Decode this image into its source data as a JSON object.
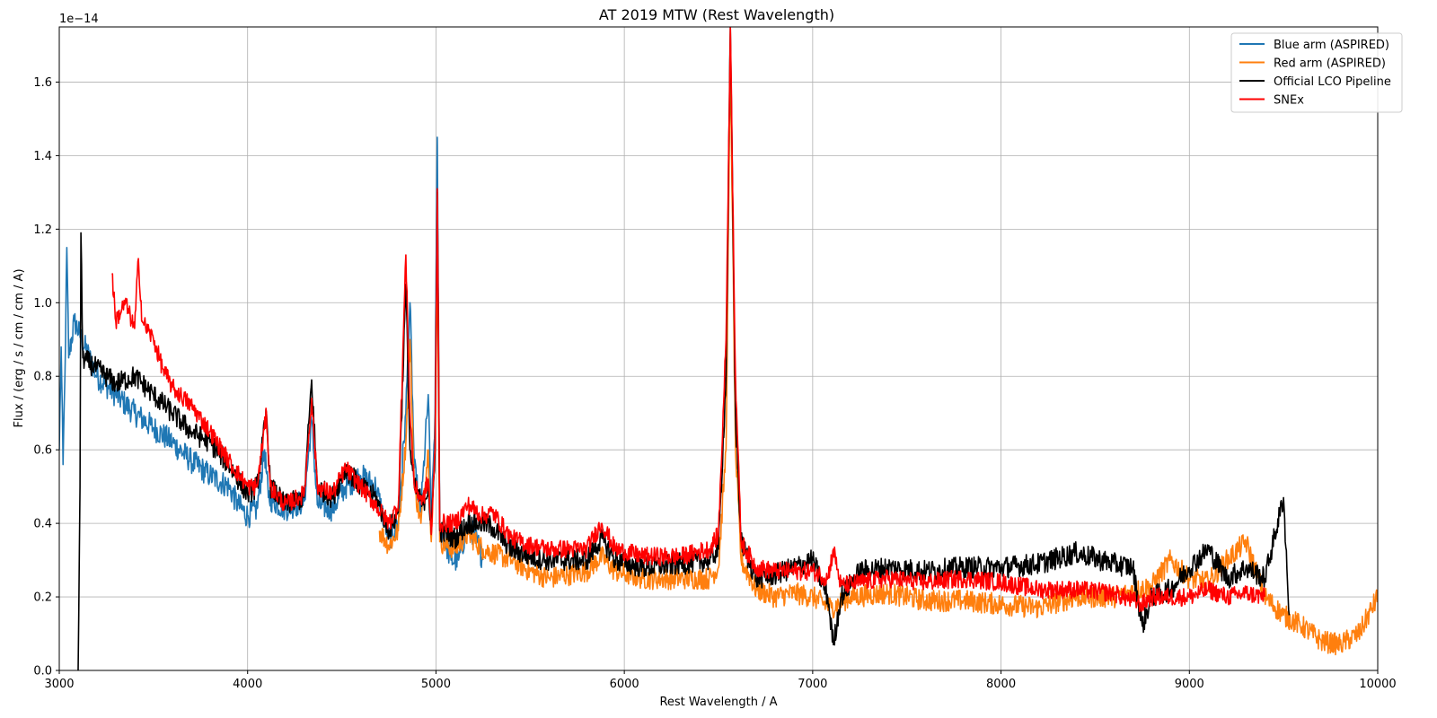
{
  "chart_data": {
    "type": "line",
    "title": "AT 2019 MTW (Rest Wavelength)",
    "xlabel": "Rest Wavelength / A",
    "ylabel": "Flux / (erg / s / cm / cm / A)",
    "y_offset_label": "1e−14",
    "xlim": [
      3000,
      10000
    ],
    "ylim": [
      0.0,
      1.75
    ],
    "xticks": [
      3000,
      4000,
      5000,
      6000,
      7000,
      8000,
      9000,
      10000
    ],
    "yticks": [
      0.0,
      0.2,
      0.4,
      0.6,
      0.8,
      1.0,
      1.2,
      1.4,
      1.6
    ],
    "grid": true,
    "legend_position": "top-right",
    "series": [
      {
        "name": "Blue arm (ASPIRED)",
        "color": "#1f77b4",
        "noise": 0.035,
        "points": [
          [
            3000,
            0.6
          ],
          [
            3010,
            0.88
          ],
          [
            3020,
            0.56
          ],
          [
            3030,
            0.8
          ],
          [
            3040,
            1.15
          ],
          [
            3050,
            0.85
          ],
          [
            3080,
            0.95
          ],
          [
            3120,
            0.9
          ],
          [
            3200,
            0.8
          ],
          [
            3300,
            0.75
          ],
          [
            3400,
            0.7
          ],
          [
            3500,
            0.66
          ],
          [
            3600,
            0.62
          ],
          [
            3700,
            0.57
          ],
          [
            3800,
            0.53
          ],
          [
            3900,
            0.5
          ],
          [
            3950,
            0.45
          ],
          [
            4000,
            0.42
          ],
          [
            4050,
            0.44
          ],
          [
            4090,
            0.6
          ],
          [
            4110,
            0.47
          ],
          [
            4200,
            0.44
          ],
          [
            4300,
            0.46
          ],
          [
            4340,
            0.68
          ],
          [
            4370,
            0.45
          ],
          [
            4450,
            0.44
          ],
          [
            4520,
            0.5
          ],
          [
            4600,
            0.53
          ],
          [
            4680,
            0.5
          ],
          [
            4750,
            0.36
          ],
          [
            4800,
            0.4
          ],
          [
            4840,
            0.7
          ],
          [
            4862,
            1.0
          ],
          [
            4885,
            0.55
          ],
          [
            4920,
            0.43
          ],
          [
            4959,
            0.75
          ],
          [
            4975,
            0.4
          ],
          [
            4995,
            0.7
          ],
          [
            5007,
            1.45
          ],
          [
            5020,
            0.4
          ],
          [
            5080,
            0.3
          ],
          [
            5120,
            0.3
          ],
          [
            5170,
            0.4
          ],
          [
            5220,
            0.35
          ],
          [
            5250,
            0.3
          ]
        ]
      },
      {
        "name": "Red arm (ASPIRED)",
        "color": "#ff7f0e",
        "noise": 0.03,
        "points": [
          [
            4700,
            0.38
          ],
          [
            4750,
            0.34
          ],
          [
            4800,
            0.38
          ],
          [
            4840,
            0.62
          ],
          [
            4862,
            0.9
          ],
          [
            4885,
            0.5
          ],
          [
            4920,
            0.4
          ],
          [
            4959,
            0.6
          ],
          [
            4975,
            0.35
          ],
          [
            4995,
            0.6
          ],
          [
            5007,
            1.15
          ],
          [
            5020,
            0.35
          ],
          [
            5100,
            0.33
          ],
          [
            5170,
            0.37
          ],
          [
            5250,
            0.33
          ],
          [
            5400,
            0.3
          ],
          [
            5500,
            0.27
          ],
          [
            5600,
            0.25
          ],
          [
            5700,
            0.26
          ],
          [
            5800,
            0.27
          ],
          [
            5880,
            0.31
          ],
          [
            5950,
            0.27
          ],
          [
            6100,
            0.25
          ],
          [
            6300,
            0.25
          ],
          [
            6450,
            0.25
          ],
          [
            6500,
            0.28
          ],
          [
            6540,
            0.6
          ],
          [
            6563,
            1.67
          ],
          [
            6590,
            0.6
          ],
          [
            6620,
            0.3
          ],
          [
            6700,
            0.22
          ],
          [
            6800,
            0.2
          ],
          [
            6900,
            0.21
          ],
          [
            7000,
            0.2
          ],
          [
            7100,
            0.17
          ],
          [
            7200,
            0.2
          ],
          [
            7400,
            0.21
          ],
          [
            7600,
            0.19
          ],
          [
            7800,
            0.19
          ],
          [
            8000,
            0.18
          ],
          [
            8200,
            0.17
          ],
          [
            8400,
            0.2
          ],
          [
            8600,
            0.2
          ],
          [
            8800,
            0.23
          ],
          [
            8900,
            0.3
          ],
          [
            9000,
            0.25
          ],
          [
            9100,
            0.24
          ],
          [
            9200,
            0.3
          ],
          [
            9300,
            0.35
          ],
          [
            9400,
            0.2
          ],
          [
            9500,
            0.15
          ],
          [
            9600,
            0.12
          ],
          [
            9700,
            0.08
          ],
          [
            9800,
            0.07
          ],
          [
            9900,
            0.1
          ],
          [
            10000,
            0.2
          ]
        ]
      },
      {
        "name": "Official LCO Pipeline",
        "color": "#000000",
        "noise": 0.03,
        "points": [
          [
            3100,
            0.0
          ],
          [
            3110,
            0.5
          ],
          [
            3115,
            1.19
          ],
          [
            3125,
            0.85
          ],
          [
            3200,
            0.82
          ],
          [
            3300,
            0.78
          ],
          [
            3400,
            0.8
          ],
          [
            3500,
            0.75
          ],
          [
            3600,
            0.7
          ],
          [
            3700,
            0.65
          ],
          [
            3800,
            0.62
          ],
          [
            3900,
            0.56
          ],
          [
            4000,
            0.48
          ],
          [
            4050,
            0.5
          ],
          [
            4100,
            0.7
          ],
          [
            4120,
            0.5
          ],
          [
            4200,
            0.45
          ],
          [
            4300,
            0.47
          ],
          [
            4340,
            0.79
          ],
          [
            4370,
            0.5
          ],
          [
            4450,
            0.47
          ],
          [
            4520,
            0.55
          ],
          [
            4600,
            0.5
          ],
          [
            4680,
            0.47
          ],
          [
            4750,
            0.38
          ],
          [
            4800,
            0.43
          ],
          [
            4840,
            1.05
          ],
          [
            4862,
            0.6
          ],
          [
            4885,
            0.5
          ],
          [
            4930,
            0.45
          ],
          [
            4959,
            0.5
          ],
          [
            4975,
            0.37
          ],
          [
            4995,
            0.6
          ],
          [
            5007,
            1.3
          ],
          [
            5020,
            0.38
          ],
          [
            5100,
            0.36
          ],
          [
            5170,
            0.4
          ],
          [
            5250,
            0.4
          ],
          [
            5300,
            0.39
          ],
          [
            5400,
            0.33
          ],
          [
            5500,
            0.31
          ],
          [
            5600,
            0.3
          ],
          [
            5700,
            0.3
          ],
          [
            5800,
            0.3
          ],
          [
            5880,
            0.36
          ],
          [
            5950,
            0.3
          ],
          [
            6100,
            0.28
          ],
          [
            6300,
            0.29
          ],
          [
            6450,
            0.3
          ],
          [
            6500,
            0.33
          ],
          [
            6540,
            0.8
          ],
          [
            6563,
            1.75
          ],
          [
            6590,
            0.7
          ],
          [
            6620,
            0.35
          ],
          [
            6700,
            0.25
          ],
          [
            6800,
            0.26
          ],
          [
            6900,
            0.28
          ],
          [
            7000,
            0.3
          ],
          [
            7080,
            0.2
          ],
          [
            7110,
            0.07
          ],
          [
            7150,
            0.2
          ],
          [
            7250,
            0.27
          ],
          [
            7400,
            0.28
          ],
          [
            7600,
            0.27
          ],
          [
            7800,
            0.28
          ],
          [
            8000,
            0.28
          ],
          [
            8200,
            0.29
          ],
          [
            8400,
            0.32
          ],
          [
            8600,
            0.29
          ],
          [
            8700,
            0.28
          ],
          [
            8750,
            0.12
          ],
          [
            8800,
            0.2
          ],
          [
            8900,
            0.22
          ],
          [
            9000,
            0.28
          ],
          [
            9100,
            0.33
          ],
          [
            9200,
            0.25
          ],
          [
            9300,
            0.28
          ],
          [
            9400,
            0.25
          ],
          [
            9500,
            0.47
          ],
          [
            9530,
            0.15
          ]
        ]
      },
      {
        "name": "SNEx",
        "color": "#ff0000",
        "noise": 0.025,
        "points": [
          [
            3280,
            1.08
          ],
          [
            3300,
            0.95
          ],
          [
            3350,
            1.0
          ],
          [
            3400,
            0.93
          ],
          [
            3420,
            1.12
          ],
          [
            3440,
            0.95
          ],
          [
            3500,
            0.9
          ],
          [
            3550,
            0.82
          ],
          [
            3600,
            0.77
          ],
          [
            3700,
            0.72
          ],
          [
            3800,
            0.65
          ],
          [
            3900,
            0.57
          ],
          [
            4000,
            0.5
          ],
          [
            4050,
            0.5
          ],
          [
            4100,
            0.7
          ],
          [
            4120,
            0.5
          ],
          [
            4200,
            0.45
          ],
          [
            4300,
            0.48
          ],
          [
            4340,
            0.74
          ],
          [
            4370,
            0.5
          ],
          [
            4450,
            0.48
          ],
          [
            4520,
            0.55
          ],
          [
            4600,
            0.5
          ],
          [
            4680,
            0.45
          ],
          [
            4750,
            0.4
          ],
          [
            4800,
            0.45
          ],
          [
            4840,
            1.13
          ],
          [
            4862,
            0.7
          ],
          [
            4885,
            0.5
          ],
          [
            4930,
            0.46
          ],
          [
            4959,
            0.52
          ],
          [
            4975,
            0.37
          ],
          [
            4995,
            0.6
          ],
          [
            5007,
            1.31
          ],
          [
            5020,
            0.4
          ],
          [
            5100,
            0.4
          ],
          [
            5170,
            0.45
          ],
          [
            5250,
            0.42
          ],
          [
            5300,
            0.43
          ],
          [
            5400,
            0.36
          ],
          [
            5500,
            0.34
          ],
          [
            5600,
            0.33
          ],
          [
            5700,
            0.33
          ],
          [
            5800,
            0.33
          ],
          [
            5880,
            0.4
          ],
          [
            5950,
            0.33
          ],
          [
            6100,
            0.31
          ],
          [
            6300,
            0.31
          ],
          [
            6450,
            0.33
          ],
          [
            6500,
            0.37
          ],
          [
            6540,
            0.9
          ],
          [
            6563,
            1.75
          ],
          [
            6590,
            0.8
          ],
          [
            6620,
            0.35
          ],
          [
            6700,
            0.28
          ],
          [
            6800,
            0.27
          ],
          [
            6900,
            0.27
          ],
          [
            7000,
            0.27
          ],
          [
            7080,
            0.25
          ],
          [
            7110,
            0.33
          ],
          [
            7150,
            0.23
          ],
          [
            7250,
            0.24
          ],
          [
            7400,
            0.25
          ],
          [
            7600,
            0.24
          ],
          [
            7800,
            0.25
          ],
          [
            8000,
            0.24
          ],
          [
            8200,
            0.22
          ],
          [
            8400,
            0.22
          ],
          [
            8600,
            0.21
          ],
          [
            8700,
            0.19
          ],
          [
            8750,
            0.18
          ],
          [
            8800,
            0.2
          ],
          [
            8900,
            0.2
          ],
          [
            9000,
            0.2
          ],
          [
            9100,
            0.22
          ],
          [
            9200,
            0.2
          ],
          [
            9300,
            0.21
          ],
          [
            9400,
            0.2
          ]
        ]
      }
    ]
  }
}
